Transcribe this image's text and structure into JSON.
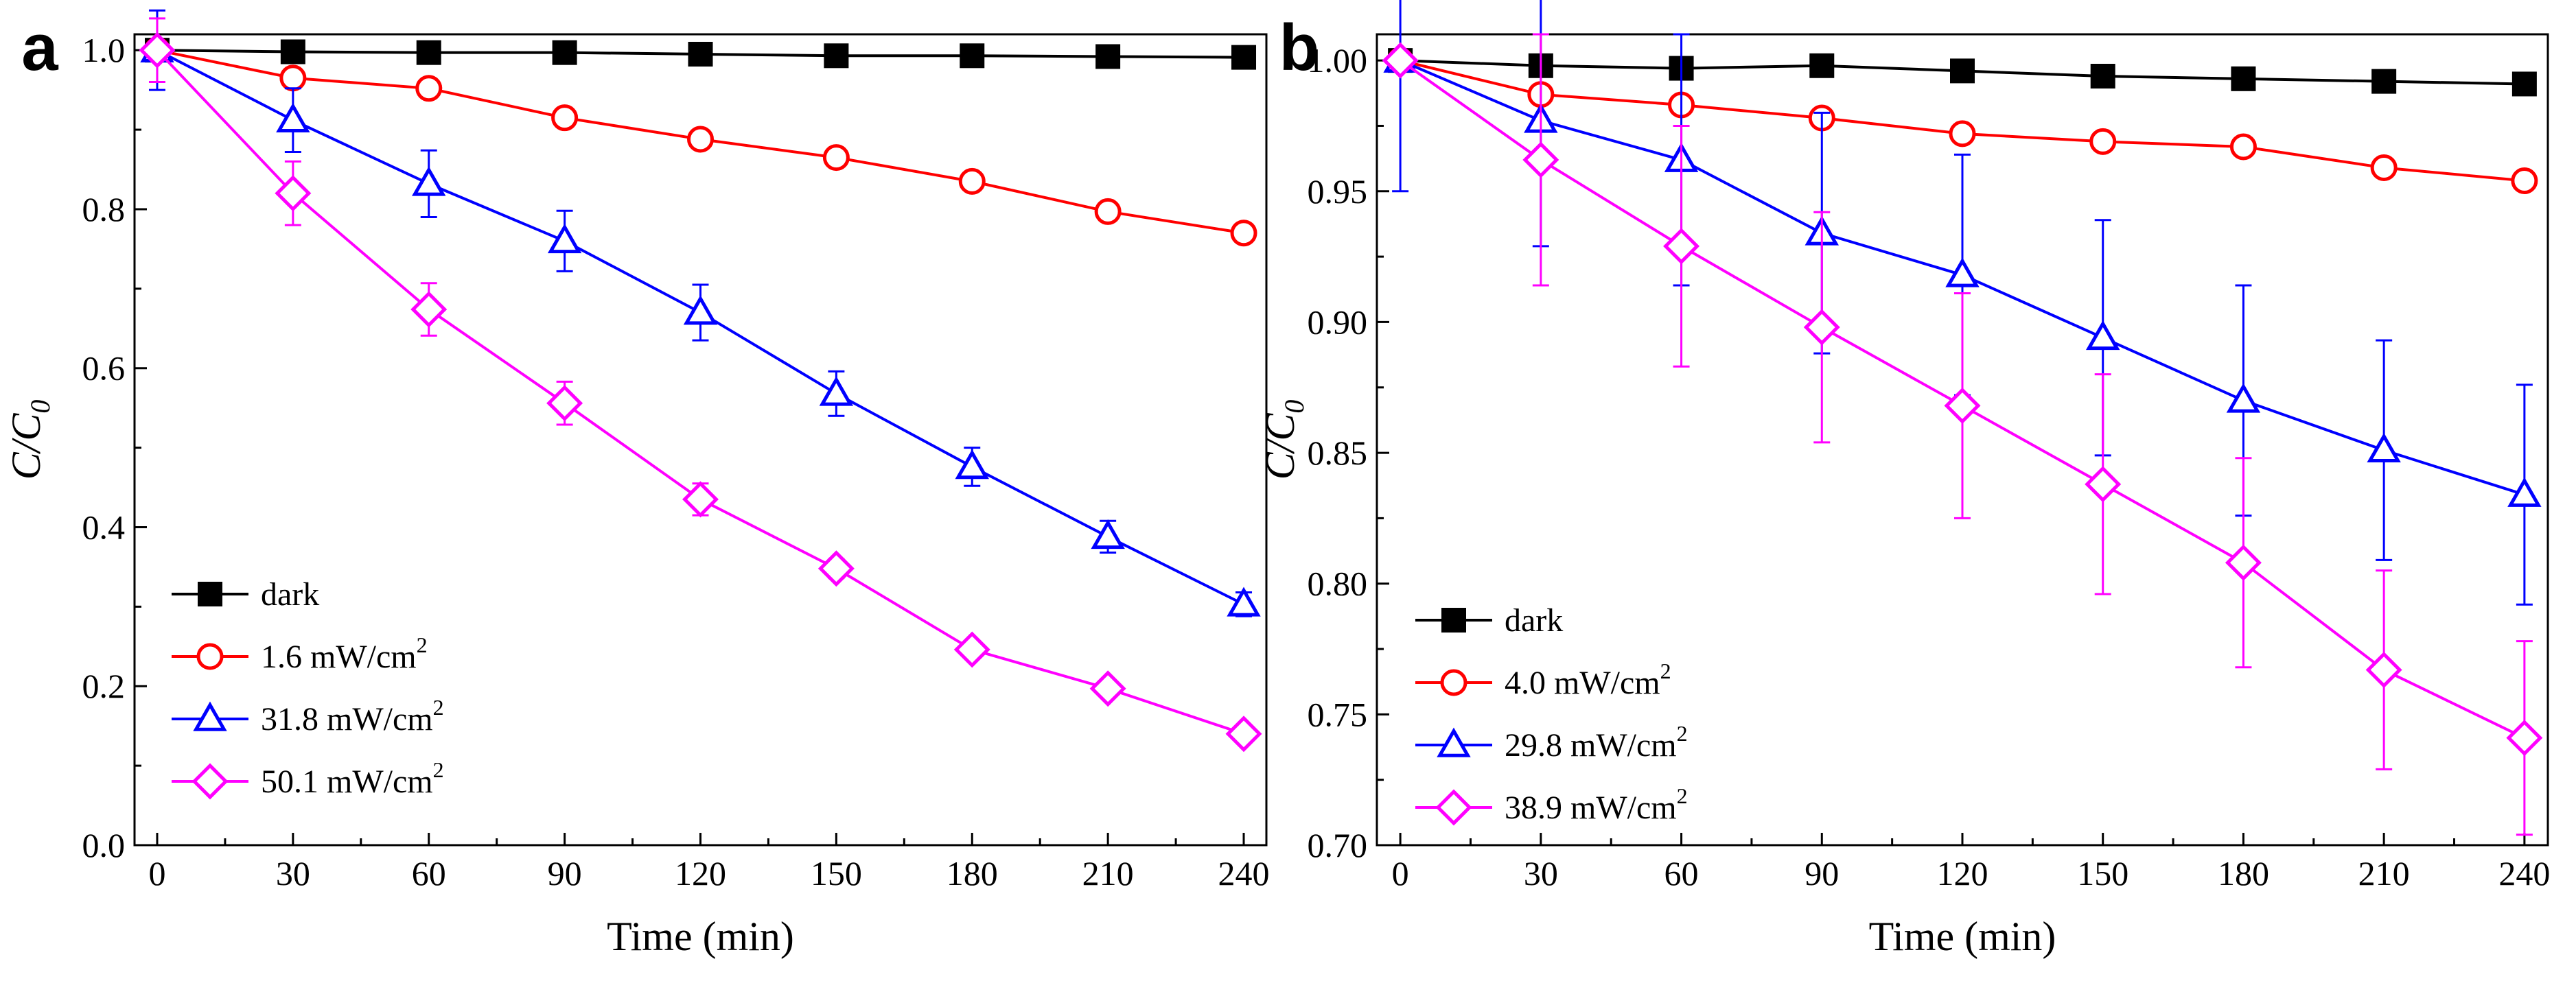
{
  "chart_data": [
    {
      "type": "line",
      "panel_label": "a",
      "xlabel": "Time (min)",
      "ylabel_main": "C/C",
      "ylabel_sub": "0",
      "x": [
        0,
        30,
        60,
        90,
        120,
        150,
        180,
        210,
        240
      ],
      "xlim": [
        -5,
        245
      ],
      "ylim": [
        0.0,
        1.02
      ],
      "xticks": [
        0,
        30,
        60,
        90,
        120,
        150,
        180,
        210,
        240
      ],
      "xtick_labels": [
        "0",
        "30",
        "60",
        "90",
        "120",
        "150",
        "180",
        "210",
        "240"
      ],
      "yticks": [
        0.0,
        0.2,
        0.4,
        0.6,
        0.8,
        1.0
      ],
      "ytick_labels": [
        "0.0",
        "0.2",
        "0.4",
        "0.6",
        "0.8",
        "1.0"
      ],
      "legend_position": "bottom-left",
      "series": [
        {
          "name": "dark",
          "unit": "",
          "color": "#000000",
          "marker": "square-filled",
          "values": [
            1.0,
            0.998,
            0.997,
            0.997,
            0.995,
            0.993,
            0.993,
            0.992,
            0.991
          ],
          "errors": [
            0,
            0,
            0,
            0,
            0,
            0,
            0,
            0,
            0
          ]
        },
        {
          "name": "1.6 mW/cm",
          "unit": "2",
          "color": "#ff0000",
          "marker": "circle-open",
          "values": [
            1.0,
            0.965,
            0.952,
            0.915,
            0.888,
            0.865,
            0.835,
            0.797,
            0.77
          ],
          "errors": [
            0,
            0,
            0,
            0,
            0,
            0,
            0,
            0,
            0
          ]
        },
        {
          "name": "31.8 mW/cm",
          "unit": "2",
          "color": "#0000ff",
          "marker": "triangle-open",
          "values": [
            1.0,
            0.912,
            0.832,
            0.76,
            0.67,
            0.568,
            0.476,
            0.388,
            0.303
          ],
          "errors": [
            0.05,
            0.04,
            0.042,
            0.038,
            0.035,
            0.028,
            0.024,
            0.02,
            0.015
          ]
        },
        {
          "name": "50.1 mW/cm",
          "unit": "2",
          "color": "#ff00ff",
          "marker": "diamond-open",
          "values": [
            1.0,
            0.82,
            0.674,
            0.556,
            0.435,
            0.348,
            0.246,
            0.197,
            0.14
          ],
          "errors": [
            0.04,
            0.04,
            0.033,
            0.027,
            0.02,
            0.012,
            0.01,
            0.008,
            0.008
          ]
        }
      ]
    },
    {
      "type": "line",
      "panel_label": "b",
      "xlabel": "Time (min)",
      "ylabel_main": "C/C",
      "ylabel_sub": "0",
      "x": [
        0,
        30,
        60,
        90,
        120,
        150,
        180,
        210,
        240
      ],
      "xlim": [
        -5,
        245
      ],
      "ylim": [
        0.7,
        1.01
      ],
      "xticks": [
        0,
        30,
        60,
        90,
        120,
        150,
        180,
        210,
        240
      ],
      "xtick_labels": [
        "0",
        "30",
        "60",
        "90",
        "120",
        "150",
        "180",
        "210",
        "240"
      ],
      "yticks": [
        0.7,
        0.75,
        0.8,
        0.85,
        0.9,
        0.95,
        1.0
      ],
      "ytick_labels": [
        "0.70",
        "0.75",
        "0.80",
        "0.85",
        "0.90",
        "0.95",
        "1.00"
      ],
      "legend_position": "bottom-left",
      "series": [
        {
          "name": "dark",
          "unit": "",
          "color": "#000000",
          "marker": "square-filled",
          "values": [
            1.0,
            0.998,
            0.997,
            0.998,
            0.996,
            0.994,
            0.993,
            0.992,
            0.991
          ],
          "errors": [
            0,
            0,
            0,
            0,
            0,
            0,
            0,
            0,
            0
          ]
        },
        {
          "name": "4.0 mW/cm",
          "unit": "2",
          "color": "#ff0000",
          "marker": "circle-open",
          "values": [
            1.0,
            0.987,
            0.983,
            0.978,
            0.972,
            0.969,
            0.967,
            0.959,
            0.954
          ],
          "errors": [
            0,
            0,
            0,
            0,
            0,
            0,
            0,
            0,
            0
          ]
        },
        {
          "name": "29.8 mW/cm",
          "unit": "2",
          "color": "#0000ff",
          "marker": "triangle-open",
          "values": [
            1.0,
            0.977,
            0.962,
            0.934,
            0.918,
            0.894,
            0.87,
            0.851,
            0.834
          ],
          "errors": [
            0.05,
            0.048,
            0.048,
            0.046,
            0.046,
            0.045,
            0.044,
            0.042,
            0.042
          ]
        },
        {
          "name": "38.9 mW/cm",
          "unit": "2",
          "color": "#ff00ff",
          "marker": "diamond-open",
          "values": [
            1.0,
            0.962,
            0.929,
            0.898,
            0.868,
            0.838,
            0.808,
            0.767,
            0.741
          ],
          "errors": [
            0.0,
            0.048,
            0.046,
            0.044,
            0.043,
            0.042,
            0.04,
            0.038,
            0.037
          ]
        }
      ]
    }
  ]
}
